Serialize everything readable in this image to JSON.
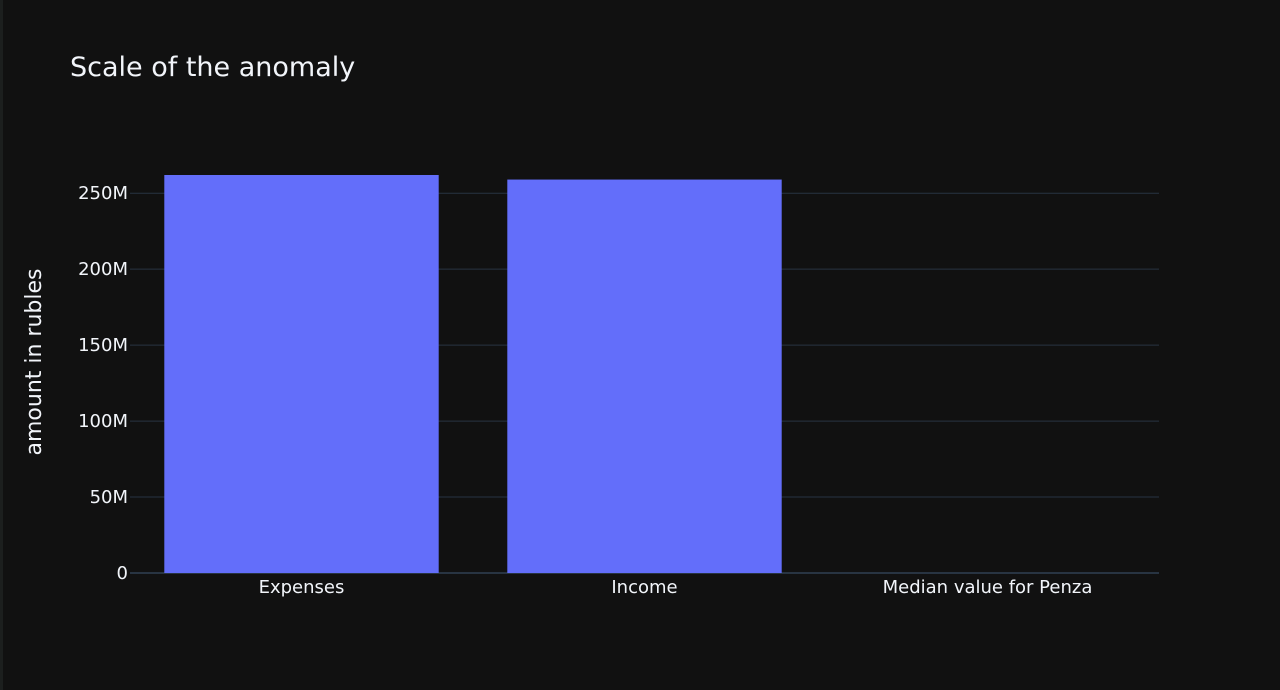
{
  "chart_data": {
    "type": "bar",
    "title": "Scale of the anomaly",
    "xlabel": "",
    "ylabel": "amount in rubles",
    "categories": [
      "Expenses",
      "Income",
      "Median value for Penza"
    ],
    "values": [
      262000000,
      259000000,
      0
    ],
    "ylim": [
      0,
      262000000
    ],
    "yticks": [
      0,
      50000000,
      100000000,
      150000000,
      200000000,
      250000000
    ],
    "ytick_labels": [
      "0",
      "50M",
      "100M",
      "150M",
      "200M",
      "250M"
    ],
    "grid": true,
    "legend": "none",
    "colors": {
      "bar": "#636efa",
      "background": "#111111",
      "grid": "#283442",
      "text": "#f2f5fa"
    }
  }
}
